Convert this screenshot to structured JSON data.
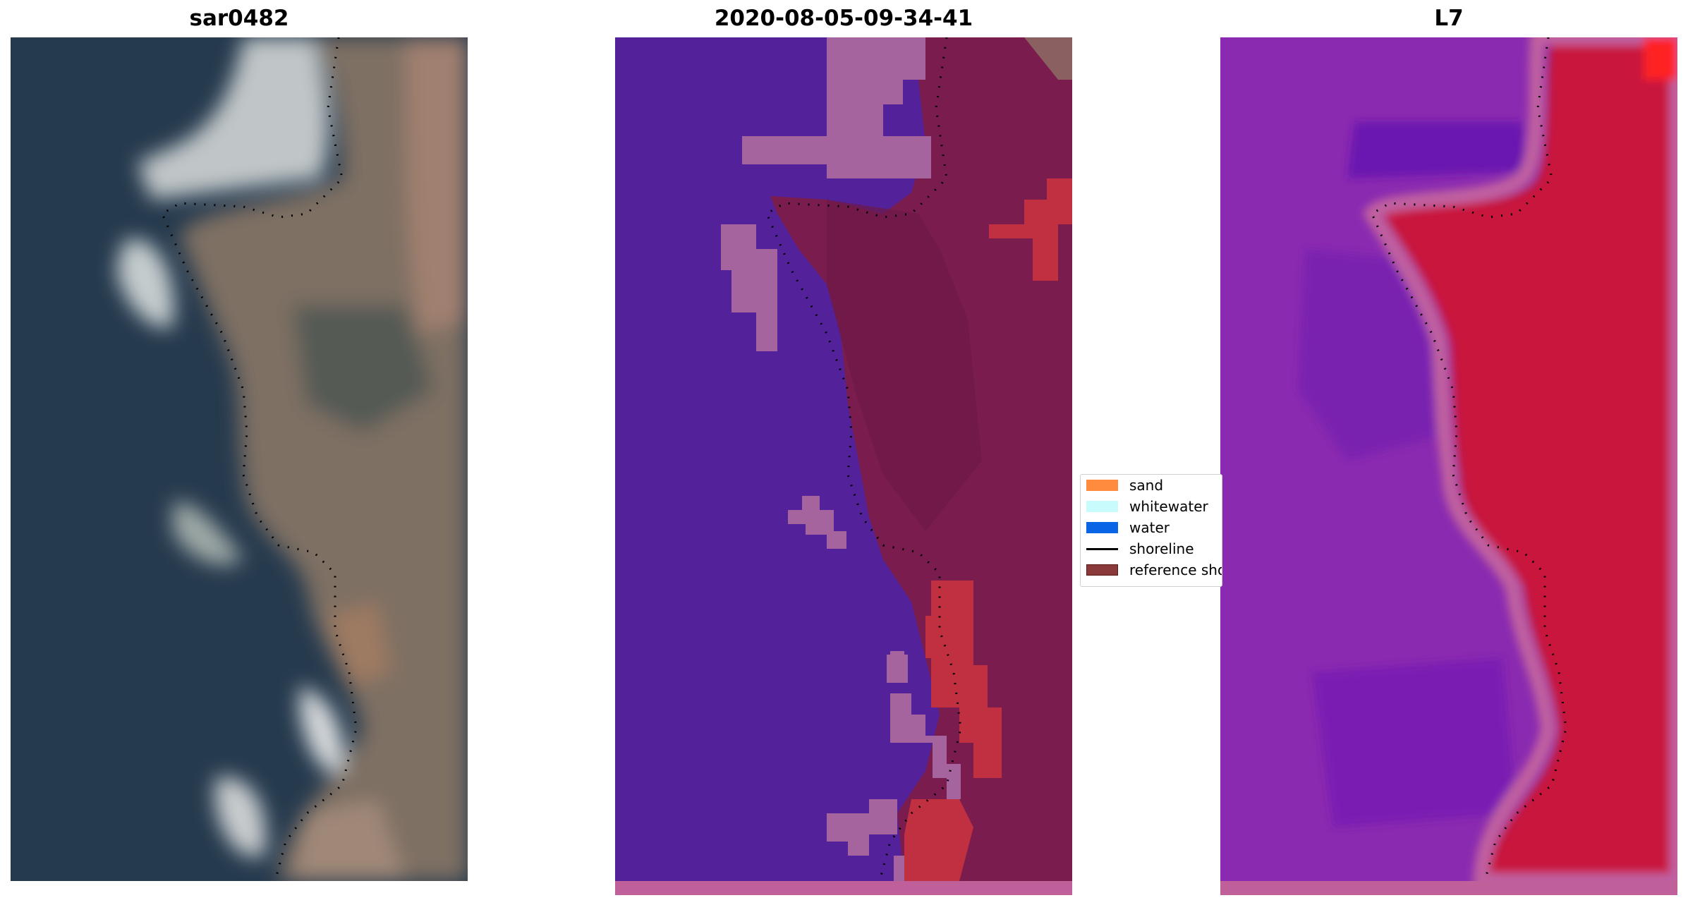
{
  "panels": [
    {
      "title": "sar0482",
      "kind": "rgb-image"
    },
    {
      "title": "2020-08-05-09-34-41",
      "kind": "classified-image"
    },
    {
      "title": "L7",
      "kind": "index-image"
    }
  ],
  "legend": {
    "items": [
      {
        "label": "sand",
        "type": "patch",
        "color": "#ff8c3c"
      },
      {
        "label": "whitewater",
        "type": "patch",
        "color": "#c8fcfc"
      },
      {
        "label": "water",
        "type": "patch",
        "color": "#0a64e6"
      },
      {
        "label": "shoreline",
        "type": "line",
        "color": "#000000"
      },
      {
        "label": "reference shoreline",
        "type": "patch",
        "color": "#8b3a3a"
      }
    ]
  },
  "colors": {
    "classified_water": "#53229a",
    "classified_whitewater": "#a5649e",
    "classified_land": "#7a1d4e",
    "classified_sand": "#c03040",
    "index_purple": "#8a2ab0",
    "index_red": "#c8143e",
    "bottom_strip": "#c0609a"
  }
}
